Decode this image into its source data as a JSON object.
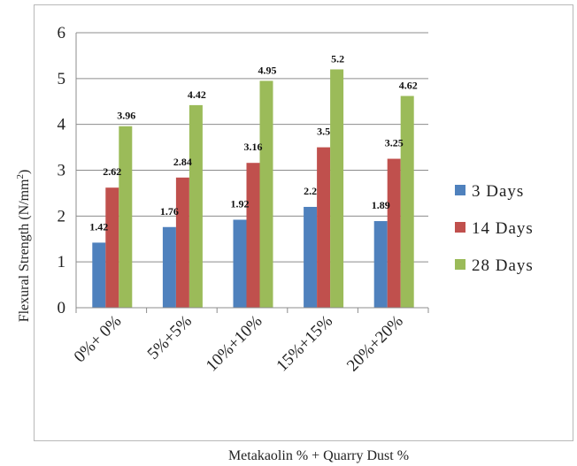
{
  "chart_data": {
    "type": "bar",
    "title": "",
    "xlabel": "Metakaolin % + Quarry Dust %",
    "ylabel_main": "Flexural Strength (N/mm",
    "ylabel_sup": "2",
    "ylabel_close": ")",
    "ylim": [
      0,
      6
    ],
    "yticks": [
      "0",
      "1",
      "2",
      "3",
      "4",
      "5",
      "6"
    ],
    "grid": true,
    "legend_position": "right",
    "categories": [
      "0%+ 0%",
      "5%+5%",
      "10%+10%",
      "15%+15%",
      "20%+20%"
    ],
    "series": [
      {
        "name": "3 Days",
        "color": "#4f81bd",
        "values": [
          1.42,
          1.76,
          1.92,
          2.2,
          1.89
        ],
        "labels": [
          "1.42",
          "1.76",
          "1.92",
          "2.2",
          "1.89"
        ]
      },
      {
        "name": "14 Days",
        "color": "#c0504d",
        "values": [
          2.62,
          2.84,
          3.16,
          3.5,
          3.25
        ],
        "labels": [
          "2.62",
          "2.84",
          "3.16",
          "3.5",
          "3.25"
        ]
      },
      {
        "name": "28 Days",
        "color": "#9bbb59",
        "values": [
          3.96,
          4.42,
          4.95,
          5.2,
          4.62
        ],
        "labels": [
          "3.96",
          "4.42",
          "4.95",
          "5.2",
          "4.62"
        ]
      }
    ]
  }
}
